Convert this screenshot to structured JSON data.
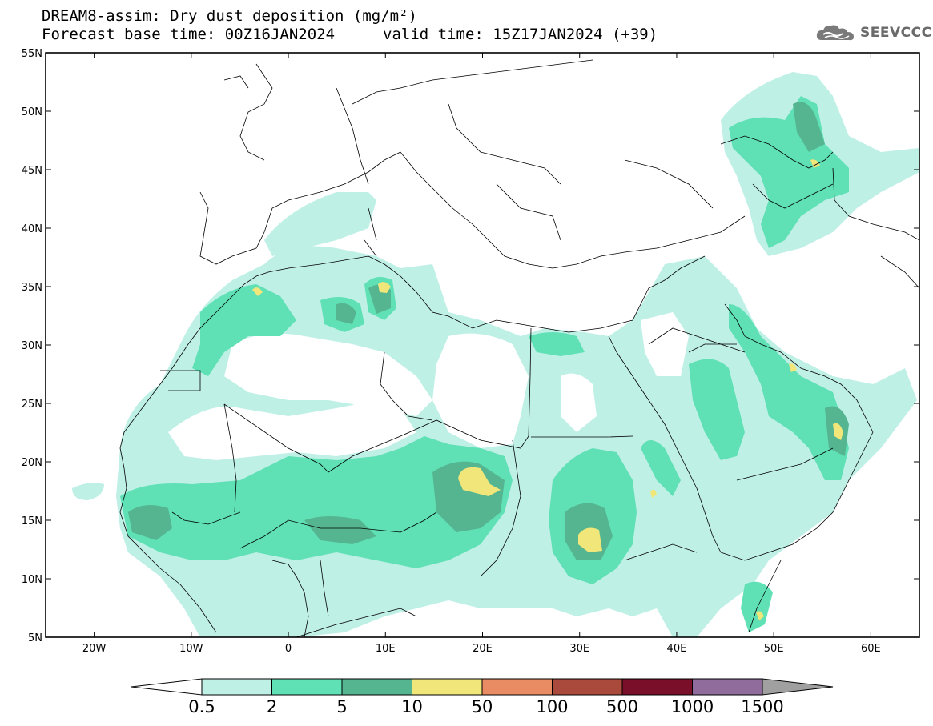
{
  "header": {
    "title_line1": "DREAM8-assim: Dry dust deposition (mg/m²)",
    "title_line2_left": "Forecast base time: 00Z16JAN2024",
    "title_line2_right": "valid time: 15Z17JAN2024 (+39)"
  },
  "logo": {
    "text": "SEEVCCC",
    "icon": "cloud-logo-icon"
  },
  "map": {
    "region": "North Africa, Europe and Middle East",
    "lon_range": [
      -25,
      65
    ],
    "lat_range": [
      5,
      55
    ],
    "lat_ticks": [
      {
        "value": 55,
        "label": "55N"
      },
      {
        "value": 50,
        "label": "50N"
      },
      {
        "value": 45,
        "label": "45N"
      },
      {
        "value": 40,
        "label": "40N"
      },
      {
        "value": 35,
        "label": "35N"
      },
      {
        "value": 30,
        "label": "30N"
      },
      {
        "value": 25,
        "label": "25N"
      },
      {
        "value": 20,
        "label": "20N"
      },
      {
        "value": 15,
        "label": "15N"
      },
      {
        "value": 10,
        "label": "10N"
      },
      {
        "value": 5,
        "label": "5N"
      }
    ],
    "lon_ticks": [
      {
        "value": -20,
        "label": "20W"
      },
      {
        "value": -10,
        "label": "10W"
      },
      {
        "value": 0,
        "label": "0"
      },
      {
        "value": 10,
        "label": "10E"
      },
      {
        "value": 20,
        "label": "20E"
      },
      {
        "value": 30,
        "label": "30E"
      },
      {
        "value": 40,
        "label": "40E"
      },
      {
        "value": 50,
        "label": "50E"
      },
      {
        "value": 60,
        "label": "60E"
      }
    ]
  },
  "colorbar": {
    "labels": [
      "0.5",
      "2",
      "5",
      "10",
      "50",
      "100",
      "500",
      "1000",
      "1500"
    ],
    "colors": [
      "#ffffff",
      "#bff0e6",
      "#5fe0b5",
      "#55b590",
      "#f0e67a",
      "#e98c64",
      "#aa4a3c",
      "#7a0f2a",
      "#8f6c9c",
      "#a0a0a0"
    ]
  }
}
